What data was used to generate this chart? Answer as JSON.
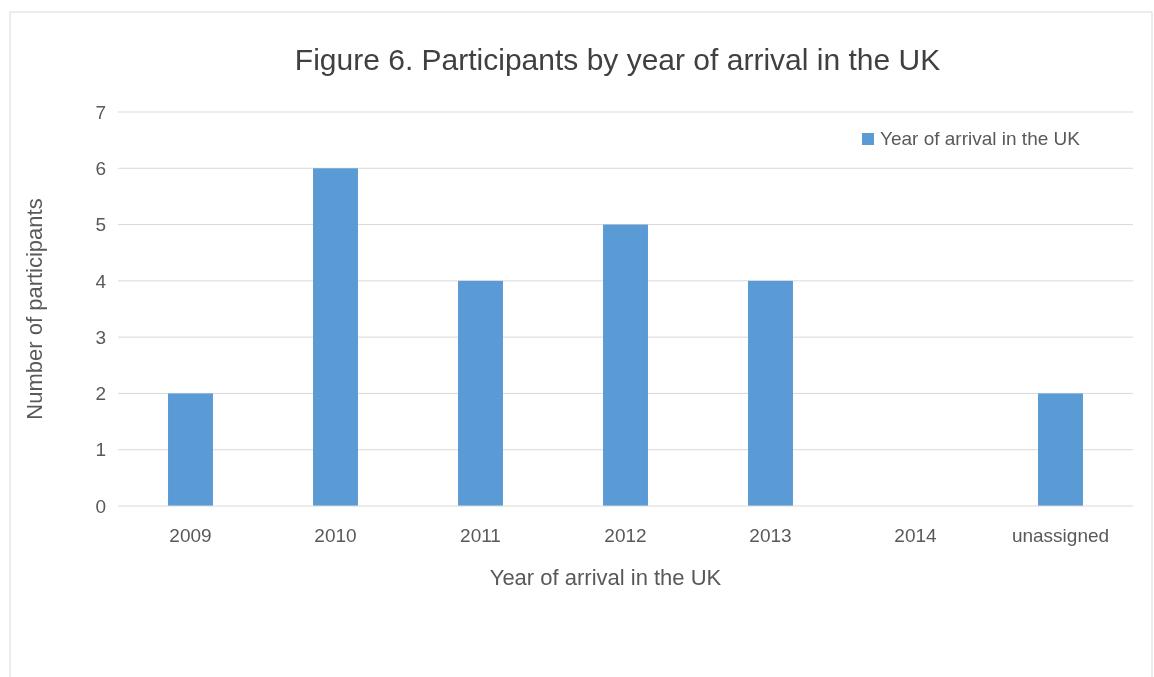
{
  "chart_data": {
    "type": "bar",
    "title": "Figure 6. Participants by year of arrival in the UK",
    "xlabel": "Year of arrival in the UK",
    "ylabel": "Number of participants",
    "categories": [
      "2009",
      "2010",
      "2011",
      "2012",
      "2013",
      "2014",
      "unassigned"
    ],
    "series": [
      {
        "name": "Year of arrival in the UK",
        "color": "#5b9bd5",
        "values": [
          2,
          6,
          4,
          5,
          4,
          0,
          2
        ]
      }
    ],
    "ylim": [
      0,
      7
    ],
    "yticks": [
      0,
      1,
      2,
      3,
      4,
      5,
      6,
      7
    ],
    "grid": "y",
    "legend": "top right"
  }
}
